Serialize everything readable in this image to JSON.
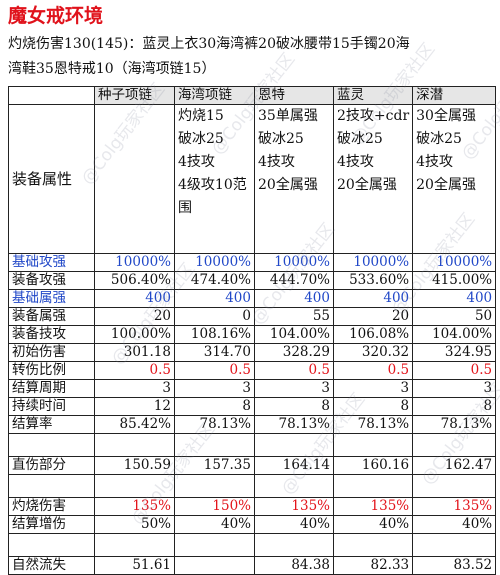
{
  "title": "魔女戒环境",
  "desc_line1": "灼烧伤害130(145)：蓝灵上衣30海湾裤20破冰腰带15手镯20海",
  "desc_line2": "湾鞋35恩特戒10（海湾项链15）",
  "watermark": "@Colg玩家社区",
  "header": [
    "种子项链",
    "海湾项链",
    "恩特",
    "蓝灵",
    "深潜"
  ],
  "equip_attr": {
    "label": "装备属性",
    "cols": [
      [],
      [
        "灼烧15",
        "破冰25",
        "4技攻",
        "4级攻10范",
        "围"
      ],
      [
        "35单属强",
        "破冰25",
        "4技攻",
        "20全属强"
      ],
      [
        "2技攻+cdr",
        "破冰25",
        "4技攻",
        "20全属强"
      ],
      [
        "30全属强",
        "破冰25",
        "4技攻",
        "20全属强"
      ]
    ]
  },
  "rows": [
    {
      "label": "基础攻强",
      "values": [
        "10000%",
        "10000%",
        "10000%",
        "10000%",
        "10000%"
      ],
      "label_color": "blue",
      "value_color": "blue"
    },
    {
      "label": "装备攻强",
      "values": [
        "506.40%",
        "474.40%",
        "444.70%",
        "533.60%",
        "415.00%"
      ]
    },
    {
      "label": "基础属强",
      "values": [
        "400",
        "400",
        "400",
        "400",
        "400"
      ],
      "label_color": "blue",
      "value_color": "blue"
    },
    {
      "label": "装备属强",
      "values": [
        "20",
        "0",
        "55",
        "20",
        "50"
      ]
    },
    {
      "label": "装备技攻",
      "values": [
        "100.00%",
        "108.16%",
        "104.00%",
        "106.08%",
        "104.00%"
      ]
    },
    {
      "label": "初始伤害",
      "values": [
        "301.18",
        "314.70",
        "328.29",
        "320.32",
        "324.95"
      ]
    },
    {
      "label": "转伤比例",
      "values": [
        "0.5",
        "0.5",
        "0.5",
        "0.5",
        "0.5"
      ],
      "value_color": "red"
    },
    {
      "label": "结算周期",
      "values": [
        "3",
        "3",
        "3",
        "3",
        "3"
      ]
    },
    {
      "label": "持续时间",
      "values": [
        "12",
        "8",
        "8",
        "8",
        "8"
      ]
    },
    {
      "label": "结算率",
      "values": [
        "85.42%",
        "78.13%",
        "78.13%",
        "78.13%",
        "78.13%"
      ]
    }
  ],
  "direct": {
    "label": "直伤部分",
    "values": [
      "150.59",
      "157.35",
      "164.14",
      "160.16",
      "162.47"
    ]
  },
  "burn": {
    "label": "灼烧伤害",
    "values": [
      "135%",
      "150%",
      "135%",
      "135%",
      "135%"
    ],
    "value_color": "red"
  },
  "settle": {
    "label": "结算增伤",
    "values": [
      "50%",
      "40%",
      "40%",
      "40%",
      "40%"
    ]
  },
  "last": {
    "label": "自然流失",
    "values": [
      "51.61",
      "",
      "84.38",
      "82.33",
      "83.52"
    ]
  }
}
